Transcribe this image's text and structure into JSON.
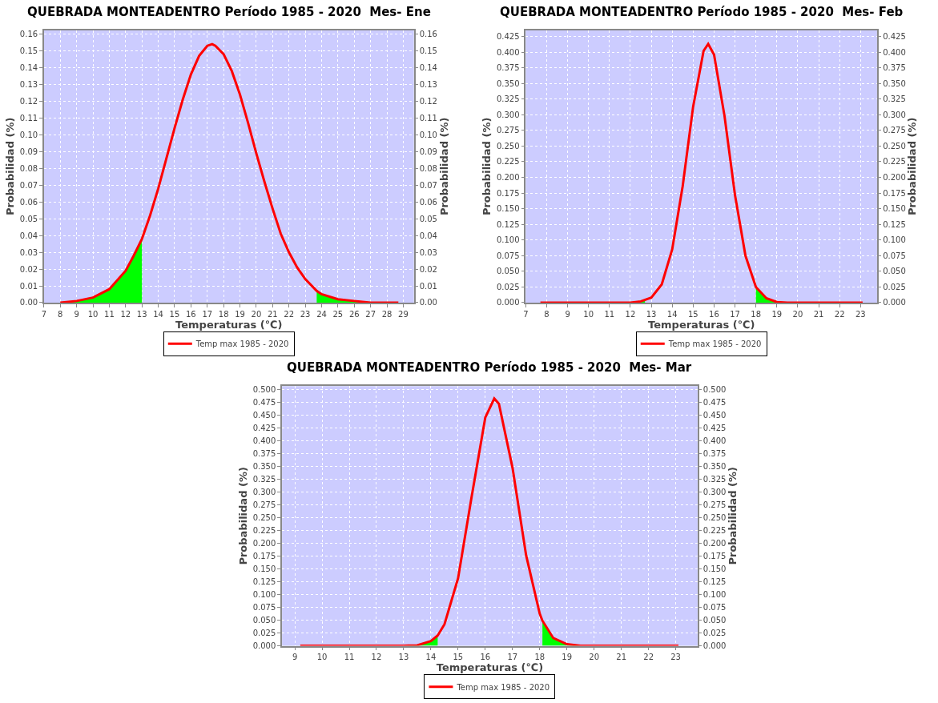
{
  "chart_data": [
    {
      "type": "line",
      "title": "QUEBRADA MONTEADENTRO Período 1985 - 2020  Mes- Ene",
      "xlabel": "Temperaturas (℃)",
      "ylabel": "Probabilidad (%)",
      "y2label": "Probabilidad (%)",
      "series": [
        {
          "type": "area",
          "color": "#00ff00",
          "x": [
            8,
            9,
            10,
            11,
            12,
            12.5,
            13
          ],
          "values": [
            0,
            0.001,
            0.003,
            0.008,
            0.019,
            0.028,
            0.038
          ]
        },
        {
          "type": "area",
          "color": "#00ff00",
          "x": [
            23.7,
            24,
            25,
            26,
            27,
            28,
            28.7
          ],
          "values": [
            0.007,
            0.005,
            0.002,
            0.001,
            0,
            0,
            0
          ]
        },
        {
          "name": "Temp max 1985 - 2020",
          "color": "#ff0000",
          "x": [
            8,
            9,
            10,
            11,
            12,
            12.5,
            13,
            13.5,
            14,
            14.5,
            15,
            15.5,
            16,
            16.5,
            17,
            17.3,
            17.5,
            18,
            18.5,
            19,
            19.5,
            20,
            20.5,
            21,
            21.5,
            22,
            22.5,
            23,
            23.7,
            24,
            25,
            26,
            27,
            28,
            28.7
          ],
          "values": [
            0,
            0.001,
            0.003,
            0.008,
            0.019,
            0.028,
            0.038,
            0.052,
            0.068,
            0.086,
            0.104,
            0.121,
            0.136,
            0.147,
            0.153,
            0.154,
            0.153,
            0.148,
            0.138,
            0.124,
            0.107,
            0.089,
            0.072,
            0.056,
            0.041,
            0.03,
            0.021,
            0.014,
            0.007,
            0.005,
            0.002,
            0.001,
            0,
            0,
            0
          ]
        }
      ],
      "xlim": [
        7,
        29.65
      ],
      "xticks": [
        7,
        8,
        9,
        10,
        11,
        12,
        13,
        14,
        15,
        16,
        17,
        18,
        19,
        20,
        21,
        22,
        23,
        24,
        25,
        26,
        27,
        28,
        29
      ],
      "ylim": [
        0,
        0.1623
      ],
      "yticks": [
        {
          "value": 0,
          "label": "0.00"
        },
        {
          "value": 0.01,
          "label": "0.01"
        },
        {
          "value": 0.02,
          "label": "0.02"
        },
        {
          "value": 0.03,
          "label": "0.03"
        },
        {
          "value": 0.04,
          "label": "0.04"
        },
        {
          "value": 0.05,
          "label": "0.05"
        },
        {
          "value": 0.06,
          "label": "0.06"
        },
        {
          "value": 0.07,
          "label": "0.07"
        },
        {
          "value": 0.08,
          "label": "0.08"
        },
        {
          "value": 0.09,
          "label": "0.09"
        },
        {
          "value": 0.1,
          "label": "0.10"
        },
        {
          "value": 0.11,
          "label": "0.11"
        },
        {
          "value": 0.12,
          "label": "0.12"
        },
        {
          "value": 0.13,
          "label": "0.13"
        },
        {
          "value": 0.14,
          "label": "0.14"
        },
        {
          "value": 0.15,
          "label": "0.15"
        },
        {
          "value": 0.16,
          "label": "0.16"
        }
      ],
      "y2lim": [
        0,
        0.1623
      ],
      "y2ticks": [
        {
          "value": 0,
          "label": "0.00"
        },
        {
          "value": 0.01,
          "label": "0.01"
        },
        {
          "value": 0.02,
          "label": "0.02"
        },
        {
          "value": 0.03,
          "label": "0.03"
        },
        {
          "value": 0.04,
          "label": "0.04"
        },
        {
          "value": 0.05,
          "label": "0.05"
        },
        {
          "value": 0.06,
          "label": "0.06"
        },
        {
          "value": 0.07,
          "label": "0.07"
        },
        {
          "value": 0.08,
          "label": "0.08"
        },
        {
          "value": 0.09,
          "label": "0.09"
        },
        {
          "value": 0.1,
          "label": "0.10"
        },
        {
          "value": 0.11,
          "label": "0.11"
        },
        {
          "value": 0.12,
          "label": "0.12"
        },
        {
          "value": 0.13,
          "label": "0.13"
        },
        {
          "value": 0.14,
          "label": "0.14"
        },
        {
          "value": 0.15,
          "label": "0.15"
        },
        {
          "value": 0.16,
          "label": "0.16"
        }
      ],
      "grid": true,
      "legend": "bottom",
      "marker": "none",
      "line_style": "solid"
    },
    {
      "type": "line",
      "title": "QUEBRADA MONTEADENTRO Período 1985 - 2020  Mes- Feb",
      "xlabel": "Temperaturas (℃)",
      "ylabel": "Probabilidad (%)",
      "y2label": "Probabilidad (%)",
      "series": [
        {
          "type": "area",
          "color": "#00ff00",
          "x": [
            7.7,
            12,
            12.5,
            12.7
          ],
          "values": [
            0,
            0,
            0.002,
            0.003
          ]
        },
        {
          "type": "area",
          "color": "#00ff00",
          "x": [
            18,
            18.5,
            19,
            19.5,
            20,
            21,
            22,
            23.1
          ],
          "values": [
            0.025,
            0.007,
            0.001,
            0,
            0,
            0,
            0,
            0
          ]
        },
        {
          "name": "Temp max 1985 - 2020",
          "color": "#ff0000",
          "x": [
            7.7,
            9,
            10,
            11,
            12,
            12.5,
            13,
            13.5,
            14,
            14.5,
            15,
            15.5,
            15.72,
            16,
            16.5,
            17,
            17.5,
            18,
            18.5,
            19,
            19.5,
            20,
            21,
            22,
            23.1
          ],
          "values": [
            0,
            0,
            0,
            0,
            0,
            0.002,
            0.008,
            0.029,
            0.085,
            0.186,
            0.313,
            0.402,
            0.413,
            0.396,
            0.298,
            0.172,
            0.075,
            0.025,
            0.007,
            0.001,
            0,
            0,
            0,
            0,
            0
          ]
        }
      ],
      "xlim": [
        7,
        23.8
      ],
      "xticks": [
        7,
        8,
        9,
        10,
        11,
        12,
        13,
        14,
        15,
        16,
        17,
        18,
        19,
        20,
        21,
        22,
        23
      ],
      "ylim": [
        0,
        0.435
      ],
      "yticks": [
        {
          "value": 0,
          "label": "0.000"
        },
        {
          "value": 0.025,
          "label": "0.025"
        },
        {
          "value": 0.05,
          "label": "0.050"
        },
        {
          "value": 0.075,
          "label": "0.075"
        },
        {
          "value": 0.1,
          "label": "0.100"
        },
        {
          "value": 0.125,
          "label": "0.125"
        },
        {
          "value": 0.15,
          "label": "0.150"
        },
        {
          "value": 0.175,
          "label": "0.175"
        },
        {
          "value": 0.2,
          "label": "0.200"
        },
        {
          "value": 0.225,
          "label": "0.225"
        },
        {
          "value": 0.25,
          "label": "0.250"
        },
        {
          "value": 0.275,
          "label": "0.275"
        },
        {
          "value": 0.3,
          "label": "0.300"
        },
        {
          "value": 0.325,
          "label": "0.325"
        },
        {
          "value": 0.35,
          "label": "0.350"
        },
        {
          "value": 0.375,
          "label": "0.375"
        },
        {
          "value": 0.4,
          "label": "0.400"
        },
        {
          "value": 0.425,
          "label": "0.425"
        }
      ],
      "y2lim": [
        0,
        0.435
      ],
      "y2ticks": [
        {
          "value": 0,
          "label": "0.000"
        },
        {
          "value": 0.025,
          "label": "0.025"
        },
        {
          "value": 0.05,
          "label": "0.050"
        },
        {
          "value": 0.075,
          "label": "0.075"
        },
        {
          "value": 0.1,
          "label": "0.100"
        },
        {
          "value": 0.125,
          "label": "0.125"
        },
        {
          "value": 0.15,
          "label": "0.150"
        },
        {
          "value": 0.175,
          "label": "0.175"
        },
        {
          "value": 0.2,
          "label": "0.200"
        },
        {
          "value": 0.225,
          "label": "0.225"
        },
        {
          "value": 0.25,
          "label": "0.250"
        },
        {
          "value": 0.275,
          "label": "0.275"
        },
        {
          "value": 0.3,
          "label": "0.300"
        },
        {
          "value": 0.325,
          "label": "0.325"
        },
        {
          "value": 0.35,
          "label": "0.350"
        },
        {
          "value": 0.375,
          "label": "0.375"
        },
        {
          "value": 0.4,
          "label": "0.400"
        },
        {
          "value": 0.425,
          "label": "0.425"
        }
      ],
      "grid": true,
      "legend": "bottom",
      "marker": "none",
      "line_style": "solid"
    },
    {
      "type": "line",
      "title": "QUEBRADA MONTEADENTRO Período 1985 - 2020  Mes- Mar",
      "xlabel": "Temperaturas (℃)",
      "ylabel": "Probabilidad (%)",
      "y2label": "Probabilidad (%)",
      "series": [
        {
          "type": "area",
          "color": "#00ff00",
          "x": [
            9.2,
            10,
            11,
            12,
            13,
            13.5,
            14,
            14.25
          ],
          "values": [
            0,
            0,
            0,
            0,
            0,
            0.001,
            0.009,
            0.02
          ]
        },
        {
          "type": "area",
          "color": "#00ff00",
          "x": [
            18.1,
            18.5,
            19,
            19.5,
            20,
            21,
            22,
            23.1
          ],
          "values": [
            0.049,
            0.015,
            0.003,
            0,
            0,
            0,
            0,
            0
          ]
        },
        {
          "name": "Temp max 1985 - 2020",
          "color": "#ff0000",
          "x": [
            9.2,
            10,
            11,
            12,
            13,
            13.5,
            14,
            14.25,
            14.5,
            15,
            15.5,
            16,
            16.33,
            16.5,
            17,
            17.5,
            18,
            18.1,
            18.5,
            19,
            19.5,
            20,
            21,
            22,
            23.1
          ],
          "values": [
            0,
            0,
            0,
            0,
            0,
            0.001,
            0.009,
            0.02,
            0.042,
            0.132,
            0.292,
            0.446,
            0.483,
            0.473,
            0.348,
            0.177,
            0.063,
            0.049,
            0.015,
            0.003,
            0,
            0,
            0,
            0,
            0
          ]
        }
      ],
      "xlim": [
        8.53,
        23.8
      ],
      "xticks": [
        9,
        10,
        11,
        12,
        13,
        14,
        15,
        16,
        17,
        18,
        19,
        20,
        21,
        22,
        23
      ],
      "ylim": [
        0,
        0.5075
      ],
      "yticks": [
        {
          "value": 0,
          "label": "0.000"
        },
        {
          "value": 0.025,
          "label": "0.025"
        },
        {
          "value": 0.05,
          "label": "0.050"
        },
        {
          "value": 0.075,
          "label": "0.075"
        },
        {
          "value": 0.1,
          "label": "0.100"
        },
        {
          "value": 0.125,
          "label": "0.125"
        },
        {
          "value": 0.15,
          "label": "0.150"
        },
        {
          "value": 0.175,
          "label": "0.175"
        },
        {
          "value": 0.2,
          "label": "0.200"
        },
        {
          "value": 0.225,
          "label": "0.225"
        },
        {
          "value": 0.25,
          "label": "0.250"
        },
        {
          "value": 0.275,
          "label": "0.275"
        },
        {
          "value": 0.3,
          "label": "0.300"
        },
        {
          "value": 0.325,
          "label": "0.325"
        },
        {
          "value": 0.35,
          "label": "0.350"
        },
        {
          "value": 0.375,
          "label": "0.375"
        },
        {
          "value": 0.4,
          "label": "0.400"
        },
        {
          "value": 0.425,
          "label": "0.425"
        },
        {
          "value": 0.45,
          "label": "0.450"
        },
        {
          "value": 0.475,
          "label": "0.475"
        },
        {
          "value": 0.5,
          "label": "0.500"
        }
      ],
      "y2lim": [
        0,
        0.5075
      ],
      "y2ticks": [
        {
          "value": 0,
          "label": "0.000"
        },
        {
          "value": 0.025,
          "label": "0.025"
        },
        {
          "value": 0.05,
          "label": "0.050"
        },
        {
          "value": 0.075,
          "label": "0.075"
        },
        {
          "value": 0.1,
          "label": "0.100"
        },
        {
          "value": 0.125,
          "label": "0.125"
        },
        {
          "value": 0.15,
          "label": "0.150"
        },
        {
          "value": 0.175,
          "label": "0.175"
        },
        {
          "value": 0.2,
          "label": "0.200"
        },
        {
          "value": 0.225,
          "label": "0.225"
        },
        {
          "value": 0.25,
          "label": "0.250"
        },
        {
          "value": 0.275,
          "label": "0.275"
        },
        {
          "value": 0.3,
          "label": "0.300"
        },
        {
          "value": 0.325,
          "label": "0.325"
        },
        {
          "value": 0.35,
          "label": "0.350"
        },
        {
          "value": 0.375,
          "label": "0.375"
        },
        {
          "value": 0.4,
          "label": "0.400"
        },
        {
          "value": 0.425,
          "label": "0.425"
        },
        {
          "value": 0.45,
          "label": "0.450"
        },
        {
          "value": 0.475,
          "label": "0.475"
        },
        {
          "value": 0.5,
          "label": "0.500"
        }
      ],
      "grid": true,
      "legend": "bottom",
      "marker": "none",
      "line_style": "solid"
    }
  ]
}
